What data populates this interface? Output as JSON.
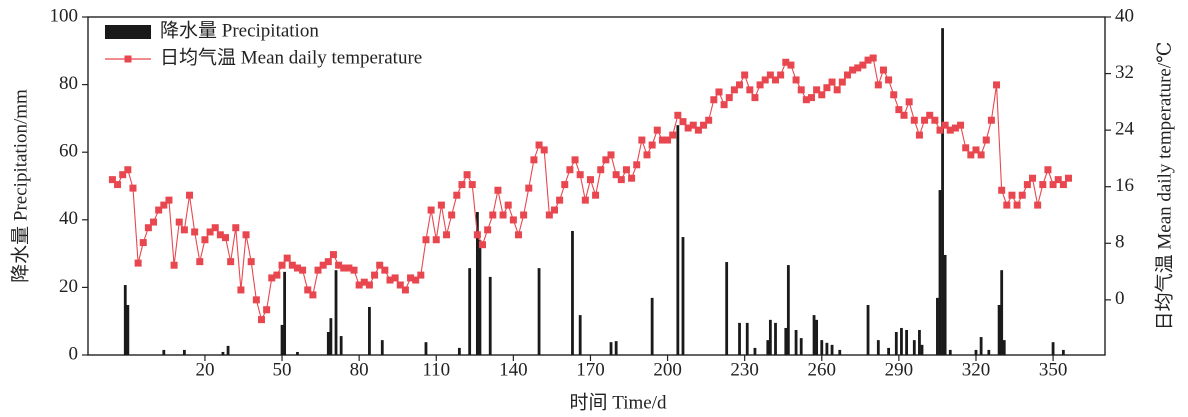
{
  "chart_data": {
    "type": "combo",
    "xlabel": "时间 Time/d",
    "ylabel": "降水量 Precipitation/mm",
    "y2label": "日均气温 Mean daily temperature/℃",
    "xlim": [
      -25.5,
      370.2
    ],
    "xticks": [
      20,
      50,
      80,
      110,
      140,
      170,
      200,
      230,
      260,
      290,
      320,
      350
    ],
    "ylim": [
      0,
      100
    ],
    "yticks": [
      0,
      20,
      40,
      60,
      80,
      100
    ],
    "y2lim": [
      -7.8,
      40
    ],
    "y2ticks": [
      0,
      8,
      16,
      24,
      32,
      40
    ],
    "legend": "upper left",
    "series": [
      {
        "name": "降水量 Precipitation",
        "type": "bar",
        "color": "#1a1a1a",
        "x": [
          -11,
          -10,
          4,
          12,
          27,
          29,
          50,
          51,
          56,
          68,
          69,
          71,
          73,
          84,
          89,
          106,
          119,
          123,
          126,
          127,
          131,
          150,
          163,
          166,
          178,
          180,
          194,
          204,
          206,
          223,
          228,
          231,
          234,
          239,
          240,
          242,
          246,
          247,
          250,
          252,
          257,
          258,
          260,
          262,
          264,
          267,
          278,
          282,
          286,
          289,
          291,
          293,
          296,
          298,
          299,
          305,
          306,
          307,
          308,
          310,
          320,
          322,
          325,
          329,
          330,
          331,
          350,
          354
        ],
        "values": [
          20.7,
          14.8,
          1.5,
          1.5,
          0.9,
          2.7,
          8.9,
          24.6,
          0.9,
          6.8,
          10.9,
          25.1,
          5.6,
          14.2,
          4.4,
          3.8,
          2.1,
          25.7,
          42.3,
          34,
          23.1,
          25.7,
          36.7,
          11.8,
          3.8,
          4.1,
          16.9,
          68,
          34.9,
          27.5,
          9.5,
          9.5,
          2.1,
          4.4,
          10.4,
          9.5,
          8,
          26.6,
          7.4,
          5,
          11.8,
          10.4,
          4.4,
          3.6,
          3,
          1.5,
          14.8,
          4.4,
          2.1,
          6.8,
          8,
          7.4,
          4.4,
          7.4,
          3,
          16.9,
          48.8,
          96.7,
          29.6,
          1.5,
          1.5,
          5.3,
          1.5,
          14.8,
          25.1,
          4.4,
          3.8,
          1.5
        ]
      },
      {
        "name": "日均气温 Mean daily temperature",
        "type": "line",
        "axis": "y2",
        "color": "#e8474f",
        "x": [
          -16,
          -14,
          -12,
          -10,
          -8,
          -6,
          -4,
          -2,
          0,
          2,
          4,
          6,
          8,
          10,
          12,
          14,
          16,
          18,
          20,
          22,
          24,
          26,
          28,
          30,
          32,
          34,
          36,
          38,
          40,
          42,
          44,
          46,
          48,
          50,
          52,
          54,
          56,
          58,
          60,
          62,
          64,
          66,
          68,
          70,
          72,
          74,
          76,
          78,
          80,
          82,
          84,
          86,
          88,
          90,
          92,
          94,
          96,
          98,
          100,
          102,
          104,
          106,
          108,
          110,
          112,
          114,
          116,
          118,
          120,
          122,
          124,
          126,
          128,
          130,
          132,
          134,
          136,
          138,
          140,
          142,
          144,
          146,
          148,
          150,
          152,
          154,
          156,
          158,
          160,
          162,
          164,
          166,
          168,
          170,
          172,
          174,
          176,
          178,
          180,
          182,
          184,
          186,
          188,
          190,
          192,
          194,
          196,
          198,
          200,
          202,
          204,
          206,
          208,
          210,
          212,
          214,
          216,
          218,
          220,
          222,
          224,
          226,
          228,
          230,
          232,
          234,
          236,
          238,
          240,
          242,
          244,
          246,
          248,
          250,
          252,
          254,
          256,
          258,
          260,
          262,
          264,
          266,
          268,
          270,
          272,
          274,
          276,
          278,
          280,
          282,
          284,
          286,
          288,
          290,
          292,
          294,
          296,
          298,
          300,
          302,
          304,
          306,
          308,
          310,
          312,
          314,
          316,
          318,
          320,
          322,
          324,
          326,
          328,
          330,
          332,
          334,
          336,
          338,
          340,
          342,
          344,
          346,
          348,
          350,
          352,
          354,
          356
        ],
        "values": [
          17.0,
          16.3,
          17.7,
          18.4,
          15.8,
          5.2,
          8.1,
          10.2,
          11.0,
          12.7,
          13.4,
          14.1,
          4.9,
          11.0,
          9.9,
          14.8,
          9.6,
          5.4,
          8.5,
          9.6,
          10.2,
          9.2,
          8.8,
          5.4,
          10.2,
          1.4,
          9.2,
          5.4,
          0,
          -2.8,
          -1.4,
          3.1,
          3.5,
          4.9,
          5.9,
          4.9,
          4.5,
          4.2,
          1.4,
          0.7,
          4.2,
          4.9,
          5.4,
          6.4,
          4.9,
          4.5,
          4.5,
          4.2,
          2.1,
          2.5,
          2.1,
          3.5,
          4.9,
          4.2,
          2.8,
          3.1,
          2.1,
          1.4,
          3.1,
          2.8,
          3.5,
          8.5,
          12.7,
          8.5,
          13.4,
          9.2,
          12.0,
          14.8,
          16.3,
          17.7,
          16.3,
          9.2,
          7.8,
          9.9,
          12.0,
          15.5,
          12.0,
          13.4,
          11.3,
          9.2,
          12.0,
          15.8,
          19.8,
          21.9,
          21.2,
          12.0,
          12.7,
          14.1,
          16.3,
          18.4,
          19.8,
          17.7,
          14.1,
          17.0,
          14.8,
          18.4,
          19.8,
          20.5,
          17.7,
          17.0,
          18.4,
          17.2,
          19.1,
          22.6,
          20.5,
          21.9,
          24.0,
          22.6,
          22.6,
          23.3,
          26.1,
          25.2,
          24.3,
          24.7,
          24.0,
          24.7,
          25.4,
          28.3,
          29.4,
          27.6,
          28.6,
          29.7,
          30.4,
          31.8,
          29.7,
          28.6,
          30.4,
          31.1,
          31.8,
          31.1,
          31.8,
          33.6,
          33.2,
          31.1,
          29.7,
          28.3,
          28.6,
          29.7,
          29.0,
          30.0,
          30.8,
          29.7,
          30.8,
          31.8,
          32.5,
          32.8,
          33.2,
          33.9,
          34.2,
          30.4,
          32.5,
          31.1,
          29.0,
          26.9,
          26.1,
          28.0,
          25.4,
          23.3,
          25.4,
          26.1,
          25.4,
          24.0,
          24.7,
          24.0,
          24.3,
          24.7,
          21.5,
          20.5,
          21.2,
          20.5,
          22.6,
          25.4,
          30.4,
          15.5,
          13.4,
          14.8,
          13.4,
          14.8,
          16.3,
          17.2,
          13.4,
          16.3,
          18.4,
          16.3,
          17.0,
          16.3,
          17.2
        ]
      }
    ]
  }
}
